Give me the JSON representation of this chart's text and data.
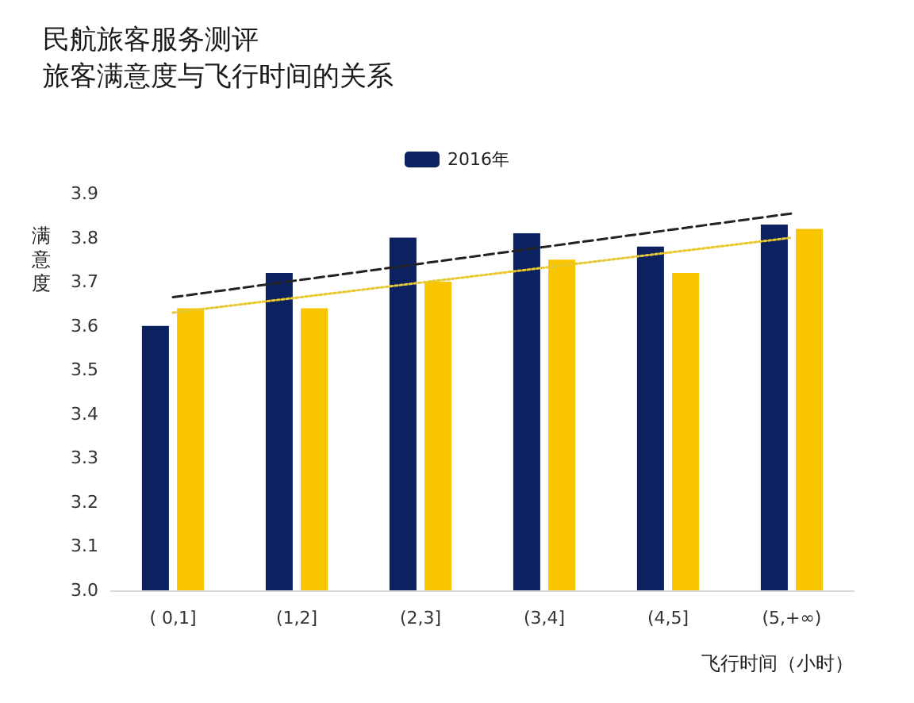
{
  "chart_data": {
    "type": "bar",
    "title": "民航旅客服务测评",
    "subtitle": "旅客满意度与飞行时间的关系",
    "xlabel": "飞行时间（小时）",
    "ylabel": "满意度",
    "categories": [
      "( 0,1]",
      "(1,2]",
      "(2,3]",
      "(3,4]",
      "(4,5]",
      "(5,+∞)"
    ],
    "series": [
      {
        "name": "2016年",
        "color": "#0c2160",
        "values": [
          3.6,
          3.72,
          3.8,
          3.81,
          3.78,
          3.83
        ]
      },
      {
        "color": "#f8c500",
        "values": [
          3.64,
          3.64,
          3.7,
          3.75,
          3.72,
          3.82
        ]
      },
      {
        "type": "line",
        "color": "#222222",
        "line_style": "dashed",
        "values": [
          3.665,
          null,
          null,
          null,
          null,
          3.855
        ]
      },
      {
        "type": "line",
        "color": "#e8c830",
        "line_style": "dotted",
        "values": [
          3.63,
          null,
          null,
          null,
          null,
          3.8
        ]
      }
    ],
    "ylim": [
      3.0,
      3.9
    ],
    "yticks": [
      {
        "value": 3.0,
        "label": "3.0"
      },
      {
        "value": 3.1,
        "label": "3.1"
      },
      {
        "value": 3.2,
        "label": "3.2"
      },
      {
        "value": 3.3,
        "label": "3.3"
      },
      {
        "value": 3.4,
        "label": "3.4"
      },
      {
        "value": 3.5,
        "label": "3.5"
      },
      {
        "value": 3.6,
        "label": "3.6"
      },
      {
        "value": 3.7,
        "label": "3.7"
      },
      {
        "value": 3.8,
        "label": "3.8"
      },
      {
        "value": 3.9,
        "label": "3.9"
      }
    ],
    "grid": false,
    "legend": "top",
    "marker": "none"
  }
}
